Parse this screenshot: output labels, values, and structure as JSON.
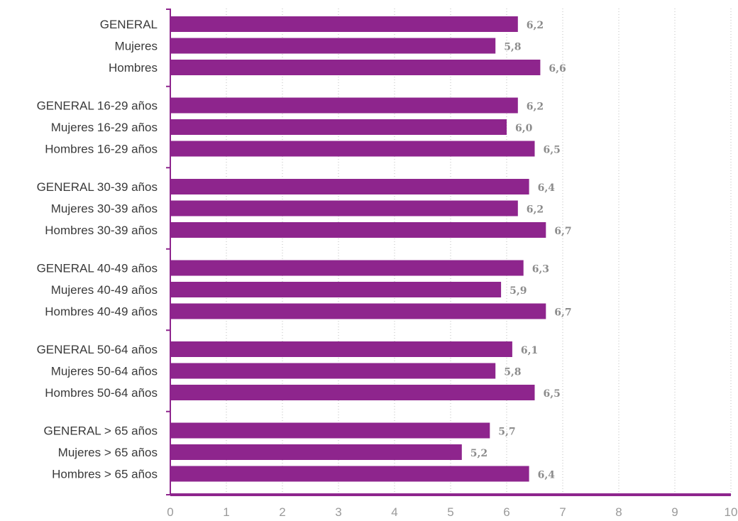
{
  "chart_data": {
    "type": "bar",
    "orientation": "horizontal",
    "categories": [
      "GENERAL",
      "Mujeres",
      "Hombres",
      "GENERAL 16-29 años",
      "Mujeres 16-29 años",
      "Hombres 16-29 años",
      "GENERAL 30-39 años",
      "Mujeres 30-39 años",
      "Hombres 30-39 años",
      "GENERAL 40-49 años",
      "Mujeres 40-49 años",
      "Hombres 40-49 años",
      "GENERAL 50-64 años",
      "Mujeres 50-64 años",
      "Hombres 50-64 años",
      "GENERAL > 65 años",
      "Mujeres > 65 años",
      "Hombres > 65 años"
    ],
    "values": [
      6.2,
      5.8,
      6.6,
      6.2,
      6.0,
      6.5,
      6.4,
      6.2,
      6.7,
      6.3,
      5.9,
      6.7,
      6.1,
      5.8,
      6.5,
      5.7,
      5.2,
      6.4
    ],
    "value_labels": [
      "6,2",
      "5,8",
      "6,6",
      "6,2",
      "6,0",
      "6,5",
      "6,4",
      "6,2",
      "6,7",
      "6,3",
      "5,9",
      "6,7",
      "6,1",
      "5,8",
      "6,5",
      "5,7",
      "5,2",
      "6,4"
    ],
    "group_size": 3,
    "xlim": [
      0,
      10
    ],
    "xticks": [
      "0",
      "1",
      "2",
      "3",
      "4",
      "5",
      "6",
      "7",
      "8",
      "9",
      "10"
    ],
    "grid": "vertical dotted",
    "title": "",
    "xlabel": "",
    "ylabel": "",
    "colors": {
      "bar": "#8e258d",
      "axis": "#8e258d",
      "grid": "#bdbdbd",
      "value_text": "#8c8c8c",
      "tick_text": "#9a9a9a",
      "category_text": "#3a3a3a"
    }
  }
}
